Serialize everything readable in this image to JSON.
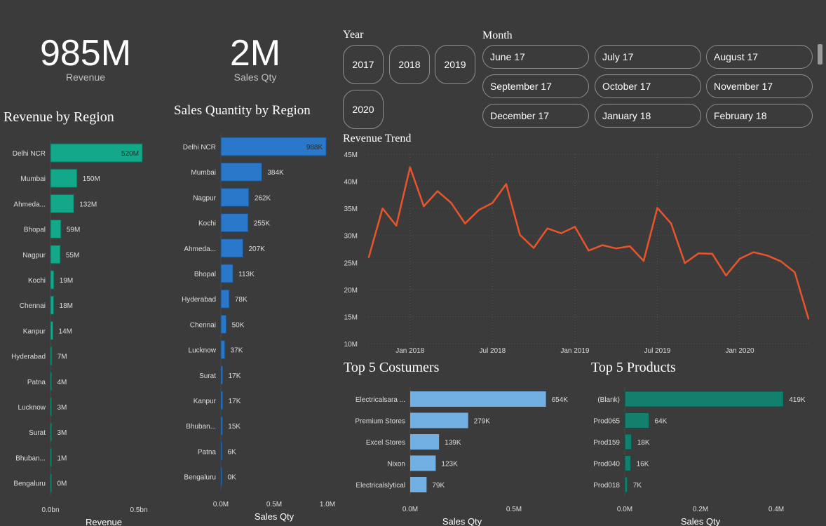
{
  "kpis": {
    "revenue": {
      "value": "985M",
      "label": "Revenue"
    },
    "sales_qty": {
      "value": "2M",
      "label": "Sales Qty"
    }
  },
  "slicers": {
    "year": {
      "label": "Year",
      "options": [
        "2017",
        "2018",
        "2019",
        "2020"
      ]
    },
    "month": {
      "label": "Month",
      "options": [
        "June 17",
        "July 17",
        "August 17",
        "September 17",
        "October 17",
        "November 17",
        "December 17",
        "January 18",
        "February 18"
      ]
    }
  },
  "colors": {
    "background": "#3b3b3b",
    "revenue_bar": "#13a88a",
    "qty_bar": "#2a78c9",
    "trend_line": "#e8552b",
    "customer_bar": "#72b0e4",
    "product_bar": "#137f6d",
    "label": "#dddddd"
  },
  "chart_data": [
    {
      "id": "revenue_by_region",
      "type": "bar",
      "orientation": "horizontal",
      "title": "Revenue by Region",
      "xlabel": "Revenue",
      "categories": [
        "Delhi NCR",
        "Mumbai",
        "Ahmeda...",
        "Bhopal",
        "Nagpur",
        "Kochi",
        "Chennai",
        "Kanpur",
        "Hyderabad",
        "Patna",
        "Lucknow",
        "Surat",
        "Bhuban...",
        "Bengaluru"
      ],
      "values": [
        520,
        150,
        132,
        59,
        55,
        19,
        18,
        14,
        7,
        4,
        3,
        3,
        1,
        0
      ],
      "value_labels": [
        "520M",
        "150M",
        "132M",
        "59M",
        "55M",
        "19M",
        "18M",
        "14M",
        "7M",
        "4M",
        "3M",
        "3M",
        "1M",
        "0M"
      ],
      "xlim": [
        0,
        500
      ],
      "xticks": [
        "0.0bn",
        "0.5bn"
      ]
    },
    {
      "id": "sales_qty_by_region",
      "type": "bar",
      "orientation": "horizontal",
      "title": "Sales Quantity by Region",
      "xlabel": "Sales Qty",
      "categories": [
        "Delhi NCR",
        "Mumbai",
        "Nagpur",
        "Kochi",
        "Ahmeda...",
        "Bhopal",
        "Hyderabad",
        "Chennai",
        "Lucknow",
        "Surat",
        "Kanpur",
        "Bhuban...",
        "Patna",
        "Bengaluru"
      ],
      "values": [
        988,
        384,
        262,
        255,
        207,
        113,
        78,
        50,
        37,
        17,
        17,
        15,
        6,
        0
      ],
      "value_labels": [
        "988K",
        "384K",
        "262K",
        "255K",
        "207K",
        "113K",
        "78K",
        "50K",
        "37K",
        "17K",
        "17K",
        "15K",
        "6K",
        "0K"
      ],
      "xlim": [
        0,
        1000
      ],
      "xticks": [
        "0.0M",
        "0.5M",
        "1.0M"
      ]
    },
    {
      "id": "revenue_trend",
      "type": "line",
      "title": "Revenue Trend",
      "x": [
        "2017-10",
        "2017-11",
        "2017-12",
        "2018-01",
        "2018-02",
        "2018-03",
        "2018-04",
        "2018-05",
        "2018-06",
        "2018-07",
        "2018-08",
        "2018-09",
        "2018-10",
        "2018-11",
        "2018-12",
        "2019-01",
        "2019-02",
        "2019-03",
        "2019-04",
        "2019-05",
        "2019-06",
        "2019-07",
        "2019-08",
        "2019-09",
        "2019-10",
        "2019-11",
        "2019-12",
        "2020-01",
        "2020-02",
        "2020-03",
        "2020-04",
        "2020-05",
        "2020-06"
      ],
      "values": [
        26.0,
        35.0,
        31.8,
        42.6,
        35.4,
        38.2,
        36.0,
        32.2,
        34.7,
        36.0,
        39.5,
        30.1,
        27.7,
        31.3,
        30.4,
        31.6,
        27.2,
        28.2,
        27.6,
        28.0,
        25.3,
        35.1,
        32.2,
        24.9,
        26.7,
        26.6,
        22.6,
        25.7,
        26.9,
        26.3,
        25.2,
        23.2,
        14.6
      ],
      "ylim": [
        10,
        45
      ],
      "yticks": [
        "10M",
        "15M",
        "20M",
        "25M",
        "30M",
        "35M",
        "40M",
        "45M"
      ],
      "xticks": [
        "Jan 2018",
        "Jul 2018",
        "Jan 2019",
        "Jul 2019",
        "Jan 2020"
      ]
    },
    {
      "id": "top5_customers",
      "type": "bar",
      "orientation": "horizontal",
      "title": "Top 5 Costumers",
      "xlabel": "Sales Qty",
      "categories": [
        "Electricalsara ...",
        "Premium Stores",
        "Excel Stores",
        "Nixon",
        "Electricalslytical"
      ],
      "values": [
        654,
        279,
        139,
        123,
        79
      ],
      "value_labels": [
        "654K",
        "279K",
        "139K",
        "123K",
        "79K"
      ],
      "xlim": [
        0,
        500
      ],
      "xticks": [
        "0.0M",
        "0.5M"
      ]
    },
    {
      "id": "top5_products",
      "type": "bar",
      "orientation": "horizontal",
      "title": "Top 5 Products",
      "xlabel": "Sales Qty",
      "categories": [
        "(Blank)",
        "Prod065",
        "Prod159",
        "Prod040",
        "Prod018"
      ],
      "values": [
        419,
        64,
        18,
        16,
        7
      ],
      "value_labels": [
        "419K",
        "64K",
        "18K",
        "16K",
        "7K"
      ],
      "xlim": [
        0,
        400
      ],
      "xticks": [
        "0.0M",
        "0.2M",
        "0.4M"
      ]
    }
  ]
}
